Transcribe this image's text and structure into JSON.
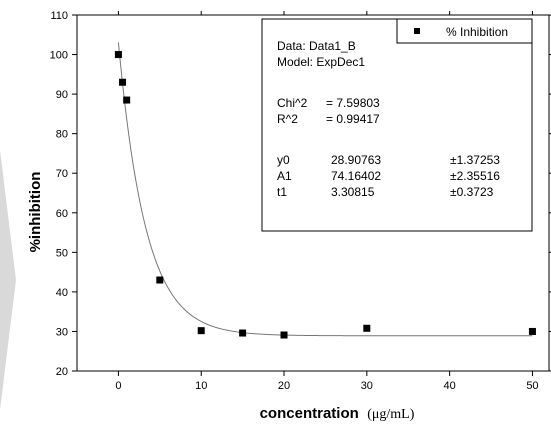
{
  "chart_data": {
    "type": "scatter",
    "xlabel": "concentration",
    "xlabel_unit": "(μg/mL)",
    "ylabel": "%inhibition",
    "xlim": [
      -5,
      52
    ],
    "ylim": [
      20,
      110
    ],
    "x_ticks": [
      0,
      10,
      20,
      30,
      40,
      50
    ],
    "y_ticks": [
      20,
      30,
      40,
      50,
      60,
      70,
      80,
      90,
      100,
      110
    ],
    "grid": false,
    "legend_position": "top-right",
    "series": [
      {
        "name": "% Inhibition",
        "marker": "square",
        "color": "#000000",
        "points": [
          {
            "x": 0,
            "y": 100
          },
          {
            "x": 0.5,
            "y": 93
          },
          {
            "x": 1,
            "y": 88.5
          },
          {
            "x": 5,
            "y": 43
          },
          {
            "x": 10,
            "y": 30.2
          },
          {
            "x": 15,
            "y": 29.6
          },
          {
            "x": 20,
            "y": 29.1
          },
          {
            "x": 30,
            "y": 30.8
          },
          {
            "x": 50,
            "y": 30
          }
        ]
      }
    ],
    "fit": {
      "model": "ExpDec1",
      "y0": 28.90763,
      "A1": 74.16402,
      "t1": 3.30815,
      "x_range": [
        0,
        50
      ],
      "color": "#777777"
    },
    "fit_box": {
      "data_line": "Data: Data1_B",
      "model_line": "Model: ExpDec1",
      "stats": [
        {
          "label": "Chi^2",
          "value": "= 7.59803"
        },
        {
          "label": "R^2",
          "value": "= 0.99417"
        }
      ],
      "params": [
        {
          "name": "y0",
          "value": "28.90763",
          "error": "±1.37253"
        },
        {
          "name": "A1",
          "value": "74.16402",
          "error": "±2.35516"
        },
        {
          "name": "t1",
          "value": "3.30815",
          "error": "±0.3723"
        }
      ]
    }
  }
}
